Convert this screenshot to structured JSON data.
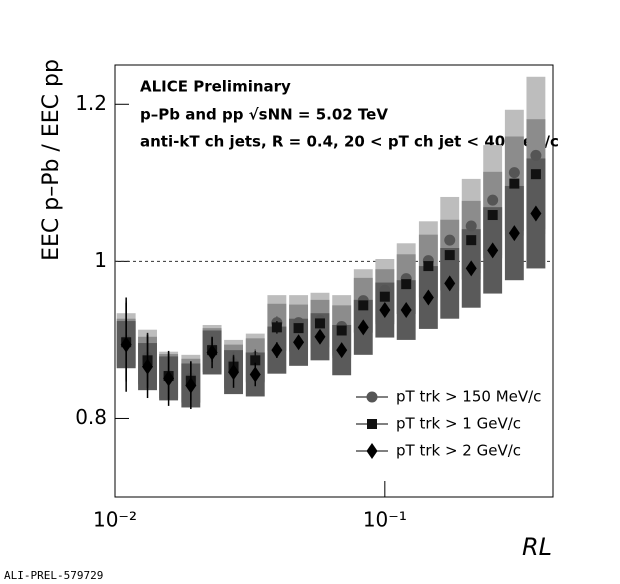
{
  "chart_data": {
    "type": "scatter",
    "annotations": [
      "ALICE Preliminary",
      "p–Pb and pp √sNN = 5.02 TeV",
      "anti-kT ch jets, R = 0.4, 20 < pT ch jet < 40 GeV/c"
    ],
    "y_label": "EEC p–Pb / EEC pp",
    "x_label": "RL",
    "footer": "ALI-PREL-579729",
    "log_x": true,
    "xlim": [
      0.01,
      0.42
    ],
    "ylim": [
      0.7,
      1.25
    ],
    "xticks": [
      {
        "value": 0.01,
        "label": "10⁻²"
      },
      {
        "value": 0.1,
        "label": "10⁻¹"
      }
    ],
    "yticks": [
      0.8,
      1,
      1.2
    ],
    "reference_line": 1,
    "x": [
      0.011,
      0.0132,
      0.0158,
      0.0191,
      0.0229,
      0.0275,
      0.0331,
      0.0398,
      0.0479,
      0.0575,
      0.0692,
      0.0832,
      0.1,
      0.12,
      0.145,
      0.174,
      0.209,
      0.251,
      0.302,
      0.363
    ],
    "series": [
      {
        "name": "pT trk > 150 MeV/c",
        "marker": "circle",
        "color": "#555555",
        "box_color": "#bdbdbd",
        "values": [
          0.899,
          0.878,
          0.855,
          0.851,
          0.889,
          0.87,
          0.878,
          0.922,
          0.922,
          0.925,
          0.917,
          0.95,
          0.963,
          0.978,
          1.001,
          1.027,
          1.045,
          1.078,
          1.113,
          1.135
        ],
        "syst": [
          0.035,
          0.035,
          0.03,
          0.03,
          0.03,
          0.03,
          0.03,
          0.035,
          0.035,
          0.035,
          0.04,
          0.04,
          0.04,
          0.045,
          0.05,
          0.055,
          0.06,
          0.07,
          0.08,
          0.1
        ],
        "stat": [
          0.05,
          0.03,
          0.025,
          0.02,
          0.015,
          0.015,
          0.01,
          0.008,
          0.006,
          0.005,
          0.005,
          0.005,
          0.005,
          0.005,
          0.005,
          0.005,
          0.005,
          0.005,
          0.005,
          0.005
        ]
      },
      {
        "name": "pT trk > 1 GeV/c",
        "marker": "square",
        "color": "#111111",
        "box_color": "#8c8c8c",
        "values": [
          0.897,
          0.874,
          0.854,
          0.848,
          0.887,
          0.866,
          0.874,
          0.916,
          0.915,
          0.921,
          0.912,
          0.944,
          0.955,
          0.971,
          0.994,
          1.008,
          1.027,
          1.059,
          1.099,
          1.111
        ],
        "syst": [
          0.03,
          0.03,
          0.028,
          0.028,
          0.028,
          0.028,
          0.028,
          0.03,
          0.03,
          0.03,
          0.032,
          0.035,
          0.035,
          0.038,
          0.04,
          0.045,
          0.05,
          0.055,
          0.06,
          0.07
        ],
        "stat": [
          0.05,
          0.035,
          0.03,
          0.025,
          0.015,
          0.015,
          0.012,
          0.008,
          0.006,
          0.005,
          0.005,
          0.005,
          0.005,
          0.005,
          0.005,
          0.005,
          0.005,
          0.005,
          0.005,
          0.005
        ]
      },
      {
        "name": "pT trk > 2 GeV/c",
        "marker": "diamond",
        "color": "#000000",
        "box_color": "#5a5a5a",
        "values": [
          0.894,
          0.866,
          0.851,
          0.842,
          0.884,
          0.859,
          0.856,
          0.887,
          0.897,
          0.904,
          0.887,
          0.916,
          0.938,
          0.938,
          0.954,
          0.972,
          0.991,
          1.014,
          1.036,
          1.061
        ],
        "syst": [
          0.03,
          0.03,
          0.028,
          0.028,
          0.028,
          0.028,
          0.028,
          0.03,
          0.03,
          0.03,
          0.032,
          0.035,
          0.035,
          0.038,
          0.04,
          0.045,
          0.05,
          0.055,
          0.06,
          0.07
        ],
        "stat": [
          0.06,
          0.04,
          0.035,
          0.03,
          0.02,
          0.02,
          0.015,
          0.01,
          0.008,
          0.006,
          0.006,
          0.005,
          0.005,
          0.005,
          0.005,
          0.005,
          0.005,
          0.005,
          0.005,
          0.005
        ]
      }
    ]
  }
}
